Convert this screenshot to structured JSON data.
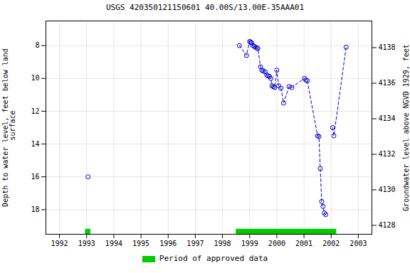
{
  "chart_data": {
    "type": "line",
    "title": "USGS 420350121150601 40.00S/13.00E-35AAA01",
    "ylabel": "Depth to water level, feet below land\n surface",
    "y2label": "Groundwater level above NGVD 1929, feet",
    "xlim": [
      1991.5,
      2003.5
    ],
    "ylim": [
      19.5,
      6.5
    ],
    "y2lim": [
      4127.5,
      4139.5
    ],
    "xticks": [
      1992,
      1993,
      1994,
      1995,
      1996,
      1997,
      1998,
      1999,
      2000,
      2001,
      2002,
      2003
    ],
    "yticks": [
      8,
      10,
      12,
      14,
      16,
      18
    ],
    "y2ticks": [
      4128,
      4130,
      4132,
      4134,
      4136,
      4138
    ],
    "grid": true,
    "legend": "bottom",
    "series": [
      {
        "color": "#0000cc",
        "line_style": "dashed",
        "marker": "open_circle",
        "x": [
          1993.05,
          null,
          1998.62,
          1998.88,
          1999.0,
          1999.03,
          1999.07,
          1999.12,
          1999.17,
          1999.22,
          1999.27,
          1999.3,
          1999.4,
          1999.45,
          1999.5,
          1999.57,
          1999.63,
          1999.68,
          1999.73,
          1999.78,
          1999.82,
          1999.87,
          1999.92,
          2000.0,
          2000.07,
          2000.15,
          2000.25,
          2000.45,
          2000.55,
          2001.02,
          2001.07,
          2001.12,
          2001.5,
          2001.55,
          2001.6,
          2001.65,
          2001.7,
          2001.75,
          2001.8,
          null,
          2002.05,
          2002.1,
          2002.55
        ],
        "values": [
          16.0,
          null,
          8.0,
          8.6,
          7.75,
          7.8,
          7.82,
          8.0,
          8.05,
          8.1,
          8.15,
          8.18,
          9.3,
          9.5,
          9.55,
          9.6,
          9.8,
          9.85,
          9.88,
          10.0,
          10.45,
          10.5,
          10.55,
          9.5,
          10.45,
          10.6,
          11.5,
          10.5,
          10.55,
          10.0,
          10.1,
          10.15,
          13.5,
          13.55,
          15.5,
          17.5,
          17.8,
          18.2,
          18.3,
          null,
          13.0,
          13.5,
          8.1
        ]
      }
    ],
    "approved_periods": {
      "name": "Period of approved data",
      "color": "#00cc00",
      "ranges": [
        [
          1992.95,
          1993.15
        ],
        [
          1998.5,
          2002.2
        ]
      ]
    }
  }
}
